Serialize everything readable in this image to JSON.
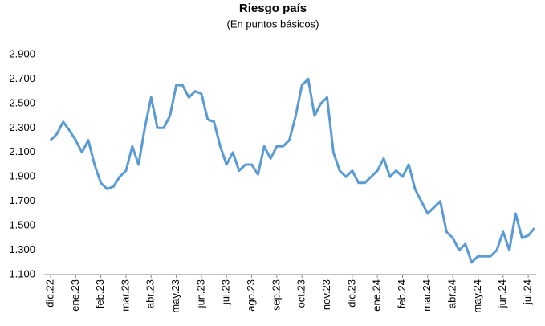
{
  "chart_data": {
    "type": "line",
    "title": "Riesgo país",
    "subtitle": "(En puntos básicos)",
    "categories": [
      "dic.22",
      null,
      null,
      null,
      "ene.23",
      null,
      null,
      null,
      "feb.23",
      null,
      null,
      null,
      "mar.23",
      null,
      null,
      null,
      "abr.23",
      null,
      null,
      null,
      "may.23",
      null,
      null,
      null,
      "jun.23",
      null,
      null,
      null,
      "jul.23",
      null,
      null,
      null,
      "ago.23",
      null,
      null,
      null,
      "sep.23",
      null,
      null,
      null,
      "oct.23",
      null,
      null,
      null,
      "nov.23",
      null,
      null,
      null,
      "dic.23",
      null,
      null,
      null,
      "ene.24",
      null,
      null,
      null,
      "feb.24",
      null,
      null,
      null,
      "mar.24",
      null,
      null,
      null,
      "abr.24",
      null,
      null,
      null,
      "may.24",
      null,
      null,
      null,
      "jun.24",
      null,
      null,
      null,
      "jul.24",
      null
    ],
    "series": [
      {
        "name": "Riesgo país",
        "color": "#5b9bd5",
        "values": [
          2200,
          2250,
          2350,
          2280,
          2200,
          2100,
          2200,
          2000,
          1850,
          1800,
          1820,
          1900,
          1950,
          2150,
          2000,
          2300,
          2550,
          2300,
          2300,
          2400,
          2650,
          2650,
          2550,
          2600,
          2580,
          2370,
          2350,
          2150,
          2000,
          2100,
          1950,
          2000,
          2000,
          1920,
          2150,
          2050,
          2150,
          2150,
          2200,
          2400,
          2650,
          2700,
          2400,
          2500,
          2550,
          2100,
          1950,
          1900,
          1950,
          1850,
          1850,
          1900,
          1950,
          2050,
          1900,
          1950,
          1900,
          2000,
          1800,
          1700,
          1600,
          1650,
          1700,
          1450,
          1400,
          1300,
          1350,
          1200,
          1250,
          1250,
          1250,
          1300,
          1450,
          1300,
          1600,
          1400,
          1420,
          1480
        ]
      }
    ],
    "ylim": [
      1100,
      2900
    ],
    "yticks": [
      {
        "value": 1100,
        "label": "1.100"
      },
      {
        "value": 1300,
        "label": "1.300"
      },
      {
        "value": 1500,
        "label": "1.500"
      },
      {
        "value": 1700,
        "label": "1.700"
      },
      {
        "value": 1900,
        "label": "1.900"
      },
      {
        "value": 2100,
        "label": "2.100"
      },
      {
        "value": 2300,
        "label": "2.300"
      },
      {
        "value": 2500,
        "label": "2.500"
      },
      {
        "value": 2700,
        "label": "2.700"
      },
      {
        "value": 2900,
        "label": "2.900"
      }
    ],
    "grid": false
  }
}
